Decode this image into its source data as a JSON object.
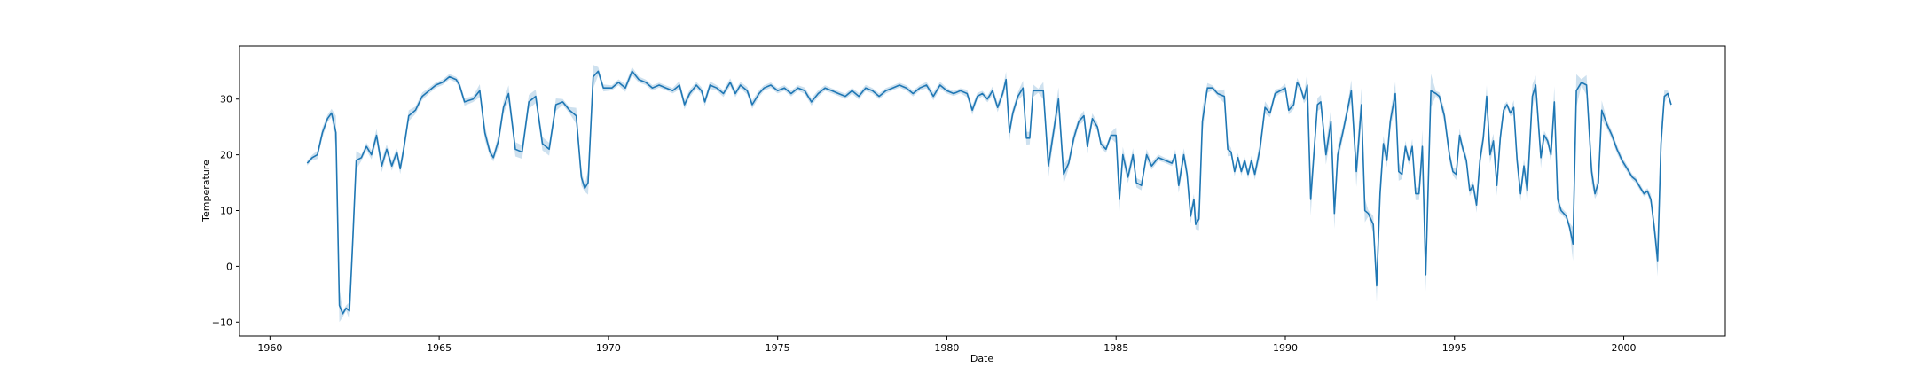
{
  "chart_data": {
    "type": "line",
    "title": "",
    "xlabel": "Date",
    "ylabel": "Temperature",
    "xlim": [
      1959.1,
      2003.0
    ],
    "ylim": [
      -12.5,
      39.5
    ],
    "x_ticks": [
      1960,
      1965,
      1970,
      1975,
      1980,
      1985,
      1990,
      1995,
      2000
    ],
    "x_tick_labels": [
      "1960",
      "1965",
      "1970",
      "1975",
      "1980",
      "1985",
      "1990",
      "1995",
      "2000"
    ],
    "y_ticks": [
      -10,
      0,
      10,
      20,
      30
    ],
    "y_tick_labels": [
      "−10",
      "0",
      "10",
      "20",
      "30"
    ],
    "grid": false,
    "legend": "none",
    "colors": {
      "line": "#1f77b4",
      "band": "#1f77b4"
    },
    "series": [
      {
        "points": [
          [
            1961.1,
            18.5
          ],
          [
            1961.25,
            19.5
          ],
          [
            1961.4,
            20.0
          ],
          [
            1961.55,
            24.0
          ],
          [
            1961.7,
            26.5
          ],
          [
            1961.82,
            27.5
          ],
          [
            1961.95,
            24.0
          ],
          [
            1962.05,
            -7.0
          ],
          [
            1962.15,
            -8.5
          ],
          [
            1962.25,
            -7.5
          ],
          [
            1962.35,
            -8.0
          ],
          [
            1962.45,
            5.0
          ],
          [
            1962.55,
            19.0
          ],
          [
            1962.7,
            19.5
          ],
          [
            1962.85,
            21.5
          ],
          [
            1963.0,
            20.0
          ],
          [
            1963.15,
            23.5
          ],
          [
            1963.3,
            18.0
          ],
          [
            1963.45,
            21.0
          ],
          [
            1963.6,
            18.0
          ],
          [
            1963.75,
            20.5
          ],
          [
            1963.85,
            17.5
          ],
          [
            1963.95,
            21.0
          ],
          [
            1964.1,
            27.0
          ],
          [
            1964.3,
            28.0
          ],
          [
            1964.5,
            30.5
          ],
          [
            1964.7,
            31.5
          ],
          [
            1964.9,
            32.5
          ],
          [
            1965.1,
            33.0
          ],
          [
            1965.3,
            34.0
          ],
          [
            1965.5,
            33.5
          ],
          [
            1965.6,
            32.5
          ],
          [
            1965.75,
            29.5
          ],
          [
            1966.0,
            30.0
          ],
          [
            1966.2,
            31.5
          ],
          [
            1966.35,
            24.0
          ],
          [
            1966.5,
            20.5
          ],
          [
            1966.6,
            19.5
          ],
          [
            1966.75,
            22.5
          ],
          [
            1966.9,
            28.5
          ],
          [
            1967.05,
            31.0
          ],
          [
            1967.25,
            21.0
          ],
          [
            1967.45,
            20.5
          ],
          [
            1967.65,
            29.5
          ],
          [
            1967.85,
            30.5
          ],
          [
            1968.05,
            22.0
          ],
          [
            1968.25,
            21.0
          ],
          [
            1968.45,
            29.0
          ],
          [
            1968.65,
            29.5
          ],
          [
            1968.85,
            28.0
          ],
          [
            1969.05,
            27.0
          ],
          [
            1969.2,
            16.0
          ],
          [
            1969.3,
            14.0
          ],
          [
            1969.4,
            15.0
          ],
          [
            1969.55,
            34.0
          ],
          [
            1969.7,
            35.0
          ],
          [
            1969.85,
            32.0
          ],
          [
            1970.1,
            32.0
          ],
          [
            1970.3,
            33.0
          ],
          [
            1970.5,
            32.0
          ],
          [
            1970.7,
            35.0
          ],
          [
            1970.9,
            33.5
          ],
          [
            1971.1,
            33.0
          ],
          [
            1971.3,
            32.0
          ],
          [
            1971.5,
            32.5
          ],
          [
            1971.7,
            32.0
          ],
          [
            1971.9,
            31.5
          ],
          [
            1972.1,
            32.5
          ],
          [
            1972.25,
            29.0
          ],
          [
            1972.4,
            31.0
          ],
          [
            1972.6,
            32.5
          ],
          [
            1972.75,
            31.5
          ],
          [
            1972.85,
            29.5
          ],
          [
            1973.0,
            32.5
          ],
          [
            1973.2,
            32.0
          ],
          [
            1973.4,
            31.0
          ],
          [
            1973.6,
            33.0
          ],
          [
            1973.75,
            31.0
          ],
          [
            1973.9,
            32.5
          ],
          [
            1974.1,
            31.5
          ],
          [
            1974.25,
            29.0
          ],
          [
            1974.45,
            31.0
          ],
          [
            1974.6,
            32.0
          ],
          [
            1974.8,
            32.5
          ],
          [
            1975.0,
            31.5
          ],
          [
            1975.2,
            32.0
          ],
          [
            1975.4,
            31.0
          ],
          [
            1975.6,
            32.0
          ],
          [
            1975.8,
            31.5
          ],
          [
            1976.0,
            29.5
          ],
          [
            1976.2,
            31.0
          ],
          [
            1976.4,
            32.0
          ],
          [
            1976.6,
            31.5
          ],
          [
            1976.8,
            31.0
          ],
          [
            1977.0,
            30.5
          ],
          [
            1977.2,
            31.5
          ],
          [
            1977.4,
            30.5
          ],
          [
            1977.6,
            32.0
          ],
          [
            1977.8,
            31.5
          ],
          [
            1978.0,
            30.5
          ],
          [
            1978.2,
            31.5
          ],
          [
            1978.4,
            32.0
          ],
          [
            1978.6,
            32.5
          ],
          [
            1978.8,
            32.0
          ],
          [
            1979.0,
            31.0
          ],
          [
            1979.2,
            32.0
          ],
          [
            1979.4,
            32.5
          ],
          [
            1979.6,
            30.5
          ],
          [
            1979.8,
            32.5
          ],
          [
            1980.0,
            31.5
          ],
          [
            1980.2,
            31.0
          ],
          [
            1980.4,
            31.5
          ],
          [
            1980.6,
            31.0
          ],
          [
            1980.75,
            28.0
          ],
          [
            1980.9,
            30.5
          ],
          [
            1981.05,
            31.0
          ],
          [
            1981.2,
            30.0
          ],
          [
            1981.35,
            31.5
          ],
          [
            1981.5,
            28.5
          ],
          [
            1981.65,
            31.0
          ],
          [
            1981.75,
            33.5
          ],
          [
            1981.85,
            24.0
          ],
          [
            1981.95,
            27.5
          ],
          [
            1982.1,
            30.5
          ],
          [
            1982.25,
            32.0
          ],
          [
            1982.35,
            23.0
          ],
          [
            1982.45,
            23.0
          ],
          [
            1982.55,
            31.5
          ],
          [
            1982.7,
            31.5
          ],
          [
            1982.85,
            31.5
          ],
          [
            1983.0,
            18.0
          ],
          [
            1983.15,
            24.0
          ],
          [
            1983.3,
            30.0
          ],
          [
            1983.45,
            16.5
          ],
          [
            1983.6,
            18.5
          ],
          [
            1983.75,
            23.0
          ],
          [
            1983.9,
            26.0
          ],
          [
            1984.05,
            27.0
          ],
          [
            1984.15,
            21.5
          ],
          [
            1984.3,
            26.5
          ],
          [
            1984.45,
            25.0
          ],
          [
            1984.55,
            22.0
          ],
          [
            1984.7,
            21.0
          ],
          [
            1984.85,
            23.5
          ],
          [
            1985.0,
            23.5
          ],
          [
            1985.1,
            12.0
          ],
          [
            1985.2,
            20.0
          ],
          [
            1985.35,
            16.0
          ],
          [
            1985.5,
            20.0
          ],
          [
            1985.6,
            15.0
          ],
          [
            1985.75,
            14.5
          ],
          [
            1985.9,
            20.0
          ],
          [
            1986.05,
            18.0
          ],
          [
            1986.25,
            19.5
          ],
          [
            1986.45,
            19.0
          ],
          [
            1986.65,
            18.5
          ],
          [
            1986.75,
            20.0
          ],
          [
            1986.85,
            14.5
          ],
          [
            1987.0,
            20.0
          ],
          [
            1987.1,
            16.5
          ],
          [
            1987.2,
            9.0
          ],
          [
            1987.3,
            12.0
          ],
          [
            1987.35,
            7.5
          ],
          [
            1987.45,
            8.5
          ],
          [
            1987.55,
            26.0
          ],
          [
            1987.7,
            32.0
          ],
          [
            1987.85,
            32.0
          ],
          [
            1988.0,
            31.0
          ],
          [
            1988.2,
            30.5
          ],
          [
            1988.3,
            21.0
          ],
          [
            1988.4,
            20.5
          ],
          [
            1988.5,
            17.0
          ],
          [
            1988.6,
            19.5
          ],
          [
            1988.7,
            17.0
          ],
          [
            1988.8,
            19.0
          ],
          [
            1988.9,
            16.5
          ],
          [
            1989.0,
            19.0
          ],
          [
            1989.1,
            16.5
          ],
          [
            1989.25,
            21.0
          ],
          [
            1989.4,
            28.5
          ],
          [
            1989.55,
            27.5
          ],
          [
            1989.7,
            31.0
          ],
          [
            1989.85,
            31.5
          ],
          [
            1990.0,
            32.0
          ],
          [
            1990.1,
            28.0
          ],
          [
            1990.25,
            29.0
          ],
          [
            1990.35,
            33.0
          ],
          [
            1990.45,
            32.0
          ],
          [
            1990.55,
            30.0
          ],
          [
            1990.65,
            32.5
          ],
          [
            1990.75,
            12.0
          ],
          [
            1990.85,
            20.5
          ],
          [
            1990.95,
            29.0
          ],
          [
            1991.05,
            29.5
          ],
          [
            1991.2,
            20.0
          ],
          [
            1991.35,
            26.0
          ],
          [
            1991.45,
            9.5
          ],
          [
            1991.55,
            20.0
          ],
          [
            1991.7,
            24.0
          ],
          [
            1991.85,
            28.5
          ],
          [
            1991.95,
            31.5
          ],
          [
            1992.1,
            17.0
          ],
          [
            1992.25,
            29.0
          ],
          [
            1992.35,
            10.0
          ],
          [
            1992.45,
            9.5
          ],
          [
            1992.6,
            7.5
          ],
          [
            1992.7,
            -3.5
          ],
          [
            1992.8,
            13.0
          ],
          [
            1992.9,
            22.0
          ],
          [
            1993.0,
            19.0
          ],
          [
            1993.1,
            26.0
          ],
          [
            1993.25,
            31.0
          ],
          [
            1993.35,
            17.0
          ],
          [
            1993.45,
            16.5
          ],
          [
            1993.55,
            21.5
          ],
          [
            1993.65,
            19.0
          ],
          [
            1993.75,
            21.5
          ],
          [
            1993.85,
            13.0
          ],
          [
            1993.95,
            13.0
          ],
          [
            1994.05,
            21.5
          ],
          [
            1994.15,
            -1.5
          ],
          [
            1994.3,
            31.5
          ],
          [
            1994.45,
            31.0
          ],
          [
            1994.55,
            30.5
          ],
          [
            1994.7,
            27.0
          ],
          [
            1994.85,
            20.0
          ],
          [
            1994.95,
            17.0
          ],
          [
            1995.05,
            16.5
          ],
          [
            1995.15,
            23.5
          ],
          [
            1995.25,
            21.0
          ],
          [
            1995.35,
            19.0
          ],
          [
            1995.45,
            13.5
          ],
          [
            1995.55,
            14.5
          ],
          [
            1995.65,
            11.0
          ],
          [
            1995.75,
            19.0
          ],
          [
            1995.85,
            23.0
          ],
          [
            1995.95,
            30.5
          ],
          [
            1996.05,
            20.0
          ],
          [
            1996.15,
            22.5
          ],
          [
            1996.25,
            14.5
          ],
          [
            1996.35,
            23.0
          ],
          [
            1996.45,
            28.0
          ],
          [
            1996.55,
            29.0
          ],
          [
            1996.65,
            27.5
          ],
          [
            1996.75,
            28.5
          ],
          [
            1996.85,
            19.0
          ],
          [
            1996.95,
            13.0
          ],
          [
            1997.05,
            18.0
          ],
          [
            1997.15,
            13.5
          ],
          [
            1997.3,
            30.5
          ],
          [
            1997.4,
            32.5
          ],
          [
            1997.55,
            19.5
          ],
          [
            1997.65,
            23.5
          ],
          [
            1997.75,
            22.5
          ],
          [
            1997.85,
            20.0
          ],
          [
            1997.95,
            29.5
          ],
          [
            1998.05,
            12.0
          ],
          [
            1998.15,
            10.0
          ],
          [
            1998.3,
            9.0
          ],
          [
            1998.4,
            7.0
          ],
          [
            1998.5,
            4.0
          ],
          [
            1998.6,
            31.5
          ],
          [
            1998.75,
            33.0
          ],
          [
            1998.9,
            32.5
          ],
          [
            1999.05,
            17.0
          ],
          [
            1999.15,
            13.0
          ],
          [
            1999.25,
            15.0
          ],
          [
            1999.35,
            28.0
          ],
          [
            1999.5,
            25.5
          ],
          [
            1999.65,
            23.5
          ],
          [
            1999.8,
            21.0
          ],
          [
            1999.95,
            19.0
          ],
          [
            2000.1,
            17.5
          ],
          [
            2000.25,
            16.0
          ],
          [
            2000.35,
            15.5
          ],
          [
            2000.5,
            14.0
          ],
          [
            2000.6,
            13.0
          ],
          [
            2000.7,
            13.5
          ],
          [
            2000.8,
            12.0
          ],
          [
            2000.9,
            7.0
          ],
          [
            2001.0,
            1.0
          ],
          [
            2001.1,
            22.0
          ],
          [
            2001.2,
            30.5
          ],
          [
            2001.3,
            31.0
          ],
          [
            2001.4,
            29.0
          ]
        ]
      }
    ]
  }
}
